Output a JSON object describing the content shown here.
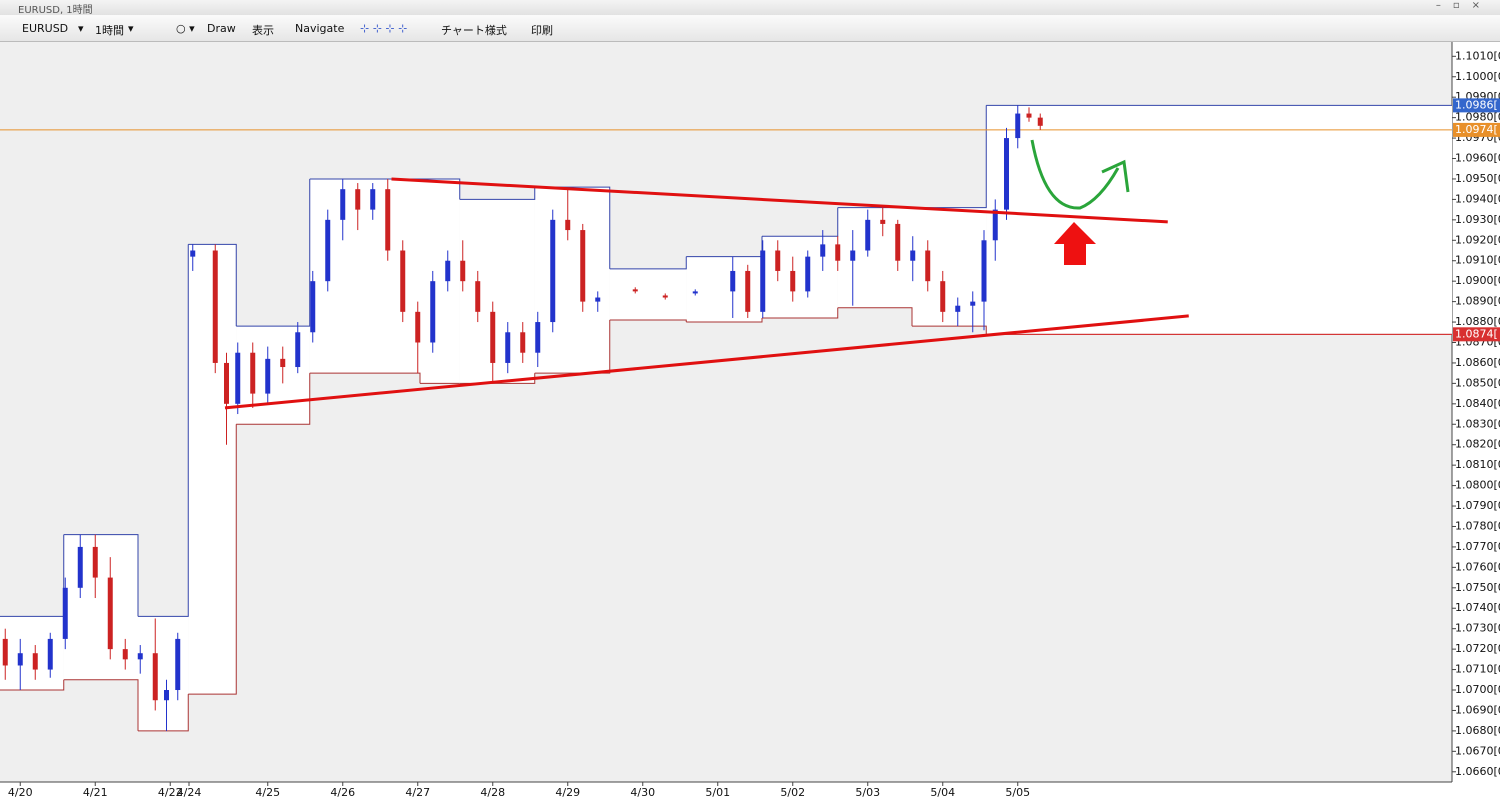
{
  "window": {
    "title": "EURUSD, 1時間"
  },
  "toolbar": {
    "symbol": "EURUSD",
    "timeframe": "1時間",
    "draw": "Draw",
    "view": "表示",
    "navigate": "Navigate",
    "chart_style": "チャート様式",
    "print": "印刷"
  },
  "chart_data": {
    "type": "candlestick",
    "xlim": [
      -0.27,
      19.09
    ],
    "xticks": [
      {
        "value": 0,
        "label": "4/20"
      },
      {
        "value": 1,
        "label": "4/21"
      },
      {
        "value": 2,
        "label": "4/22"
      },
      {
        "value": 2.25,
        "label": "4/24"
      },
      {
        "value": 3.3,
        "label": "4/25"
      },
      {
        "value": 4.3,
        "label": "4/26"
      },
      {
        "value": 5.3,
        "label": "4/27"
      },
      {
        "value": 6.3,
        "label": "4/28"
      },
      {
        "value": 7.3,
        "label": "4/29"
      },
      {
        "value": 8.3,
        "label": "4/30"
      },
      {
        "value": 9.3,
        "label": "5/01"
      },
      {
        "value": 10.3,
        "label": "5/02"
      },
      {
        "value": 11.3,
        "label": "5/03"
      },
      {
        "value": 12.3,
        "label": "5/04"
      },
      {
        "value": 13.3,
        "label": "5/05"
      }
    ],
    "ylim": [
      1.0655,
      1.1017
    ],
    "yticks": [
      {
        "value": 1.066,
        "label": "1.0660[0"
      },
      {
        "value": 1.067,
        "label": "1.0670[0"
      },
      {
        "value": 1.068,
        "label": "1.0680[0"
      },
      {
        "value": 1.069,
        "label": "1.0690[0"
      },
      {
        "value": 1.07,
        "label": "1.0700[0"
      },
      {
        "value": 1.071,
        "label": "1.0710[0"
      },
      {
        "value": 1.072,
        "label": "1.0720[0"
      },
      {
        "value": 1.073,
        "label": "1.0730[0"
      },
      {
        "value": 1.074,
        "label": "1.0740[0"
      },
      {
        "value": 1.075,
        "label": "1.0750[0"
      },
      {
        "value": 1.076,
        "label": "1.0760[0"
      },
      {
        "value": 1.077,
        "label": "1.0770[0"
      },
      {
        "value": 1.078,
        "label": "1.0780[0"
      },
      {
        "value": 1.079,
        "label": "1.0790[0"
      },
      {
        "value": 1.08,
        "label": "1.0800[0"
      },
      {
        "value": 1.081,
        "label": "1.0810[0"
      },
      {
        "value": 1.082,
        "label": "1.0820[0"
      },
      {
        "value": 1.083,
        "label": "1.0830[0"
      },
      {
        "value": 1.084,
        "label": "1.0840[0"
      },
      {
        "value": 1.085,
        "label": "1.0850[0"
      },
      {
        "value": 1.086,
        "label": "1.0860[0"
      },
      {
        "value": 1.087,
        "label": "1.0870[0"
      },
      {
        "value": 1.088,
        "label": "1.0880[0"
      },
      {
        "value": 1.089,
        "label": "1.0890[0"
      },
      {
        "value": 1.09,
        "label": "1.0900[0"
      },
      {
        "value": 1.091,
        "label": "1.0910[0"
      },
      {
        "value": 1.092,
        "label": "1.0920[0"
      },
      {
        "value": 1.093,
        "label": "1.0930[0"
      },
      {
        "value": 1.094,
        "label": "1.0940[0"
      },
      {
        "value": 1.095,
        "label": "1.0950[0"
      },
      {
        "value": 1.096,
        "label": "1.0960[0"
      },
      {
        "value": 1.097,
        "label": "1.0970[0"
      },
      {
        "value": 1.098,
        "label": "1.0980[0"
      },
      {
        "value": 1.099,
        "label": "1.0990[0"
      },
      {
        "value": 1.1,
        "label": "1.1000[0"
      },
      {
        "value": 1.101,
        "label": "1.1010[0"
      }
    ],
    "up_color": "#2233cc",
    "down_color": "#cc2222",
    "x": [
      -0.2,
      0,
      0.2,
      0.4,
      0.6,
      0.8,
      1,
      1.2,
      1.4,
      1.6,
      1.8,
      1.95,
      2.1,
      2.3,
      2.6,
      2.75,
      2.9,
      3.1,
      3.3,
      3.5,
      3.7,
      3.9,
      4.1,
      4.3,
      4.5,
      4.7,
      4.9,
      5.1,
      5.3,
      5.5,
      5.7,
      5.9,
      6.1,
      6.3,
      6.5,
      6.7,
      6.9,
      7.1,
      7.3,
      7.5,
      7.7,
      8.2,
      8.6,
      9,
      9.5,
      9.7,
      9.9,
      10.1,
      10.3,
      10.5,
      10.7,
      10.9,
      11.1,
      11.3,
      11.5,
      11.7,
      11.9,
      12.1,
      12.3,
      12.5,
      12.7,
      12.85,
      13,
      13.15,
      13.3,
      13.45,
      13.6
    ],
    "open": [
      1.0725,
      1.0712,
      1.0718,
      1.071,
      1.0725,
      1.075,
      1.077,
      1.0755,
      1.072,
      1.0715,
      1.0718,
      1.0695,
      1.07,
      1.0912,
      1.0915,
      1.086,
      1.084,
      1.0865,
      1.0845,
      1.0862,
      1.0858,
      1.0875,
      1.09,
      1.093,
      1.0945,
      1.0935,
      1.0945,
      1.0915,
      1.0885,
      1.087,
      1.09,
      1.091,
      1.09,
      1.0885,
      1.086,
      1.0875,
      1.0865,
      1.088,
      1.093,
      1.0925,
      1.089,
      1.0896,
      1.0893,
      1.0894,
      1.0895,
      1.0905,
      1.0885,
      1.0915,
      1.0905,
      1.0895,
      1.0912,
      1.0918,
      1.091,
      1.0915,
      1.093,
      1.0928,
      1.091,
      1.0915,
      1.09,
      1.0885,
      1.0888,
      1.089,
      1.092,
      1.0935,
      1.097,
      1.0982,
      1.098
    ],
    "high": [
      1.073,
      1.0725,
      1.0722,
      1.0728,
      1.0755,
      1.0776,
      1.0776,
      1.0765,
      1.0725,
      1.0722,
      1.0735,
      1.0705,
      1.0728,
      1.0918,
      1.0918,
      1.0865,
      1.087,
      1.087,
      1.0868,
      1.0868,
      1.088,
      1.0905,
      1.0935,
      1.095,
      1.0948,
      1.0948,
      1.095,
      1.092,
      1.089,
      1.0905,
      1.0915,
      1.092,
      1.0905,
      1.089,
      1.088,
      1.088,
      1.0885,
      1.0935,
      1.0945,
      1.0928,
      1.0895,
      1.0897,
      1.0894,
      1.0896,
      1.0912,
      1.0908,
      1.092,
      1.092,
      1.0912,
      1.0915,
      1.0925,
      1.0922,
      1.0925,
      1.0935,
      1.0936,
      1.093,
      1.0922,
      1.092,
      1.0905,
      1.0892,
      1.0895,
      1.0925,
      1.094,
      1.0975,
      1.0986,
      1.0985,
      1.0982
    ],
    "low": [
      1.0705,
      1.07,
      1.0705,
      1.0706,
      1.072,
      1.0745,
      1.0745,
      1.0715,
      1.071,
      1.0708,
      1.069,
      1.068,
      1.0695,
      1.0905,
      1.0855,
      1.082,
      1.0835,
      1.0838,
      1.084,
      1.085,
      1.0855,
      1.087,
      1.0895,
      1.092,
      1.0925,
      1.093,
      1.091,
      1.088,
      1.0855,
      1.0865,
      1.0895,
      1.0895,
      1.088,
      1.085,
      1.0855,
      1.086,
      1.0858,
      1.0875,
      1.092,
      1.0885,
      1.0885,
      1.0894,
      1.0891,
      1.0893,
      1.0882,
      1.0882,
      1.0882,
      1.09,
      1.089,
      1.0892,
      1.0905,
      1.0905,
      1.0888,
      1.0912,
      1.0922,
      1.0905,
      1.09,
      1.0895,
      1.088,
      1.0878,
      1.0875,
      1.0876,
      1.091,
      1.093,
      1.0965,
      1.0978,
      1.0974
    ],
    "close": [
      1.0712,
      1.0718,
      1.071,
      1.0725,
      1.075,
      1.077,
      1.0755,
      1.072,
      1.0715,
      1.0718,
      1.0695,
      1.07,
      1.0725,
      1.0915,
      1.086,
      1.084,
      1.0865,
      1.0845,
      1.0862,
      1.0858,
      1.0875,
      1.09,
      1.093,
      1.0945,
      1.0935,
      1.0945,
      1.0915,
      1.0885,
      1.087,
      1.09,
      1.091,
      1.09,
      1.0885,
      1.086,
      1.0875,
      1.0865,
      1.088,
      1.093,
      1.0925,
      1.089,
      1.0892,
      1.0895,
      1.0892,
      1.0895,
      1.0905,
      1.0885,
      1.0915,
      1.0905,
      1.0895,
      1.0912,
      1.0918,
      1.091,
      1.0915,
      1.093,
      1.0928,
      1.091,
      1.0915,
      1.09,
      1.0885,
      1.0888,
      1.089,
      1.092,
      1.0935,
      1.097,
      1.0982,
      1.098,
      1.0976
    ],
    "channel": {
      "upper_color": "#3344aa",
      "lower_color": "#aa3333",
      "x": [
        -0.27,
        0.58,
        1.57,
        2.24,
        2.88,
        3.86,
        5.33,
        5.86,
        6.86,
        7.86,
        8.88,
        9.89,
        10.9,
        11.89,
        12.88
      ],
      "upper": [
        1.0736,
        1.0776,
        1.0736,
        1.0918,
        1.0878,
        1.095,
        1.095,
        1.094,
        1.0946,
        1.0906,
        1.0912,
        1.0922,
        1.0936,
        1.0936,
        1.0986
      ],
      "lower": [
        1.07,
        1.0705,
        1.068,
        1.0698,
        1.083,
        1.0855,
        1.085,
        1.085,
        1.0855,
        1.0881,
        1.088,
        1.0882,
        1.0887,
        1.0878,
        1.0874
      ]
    },
    "trendlines": {
      "color": "#e01010",
      "upper": {
        "x": [
          4.95,
          15.3
        ],
        "y": [
          1.095,
          1.0929
        ]
      },
      "lower": {
        "x": [
          2.73,
          15.58
        ],
        "y": [
          1.0838,
          1.0883
        ]
      }
    },
    "price_levels": [
      {
        "value": 1.0986,
        "label": "1.0986[",
        "color": "#3366cc",
        "line": false
      },
      {
        "value": 1.0974,
        "label": "1.0974[",
        "color": "#e8902a",
        "line": true
      },
      {
        "value": 1.0874,
        "label": "1.0874[",
        "color": "#d83030",
        "line": true
      }
    ]
  }
}
